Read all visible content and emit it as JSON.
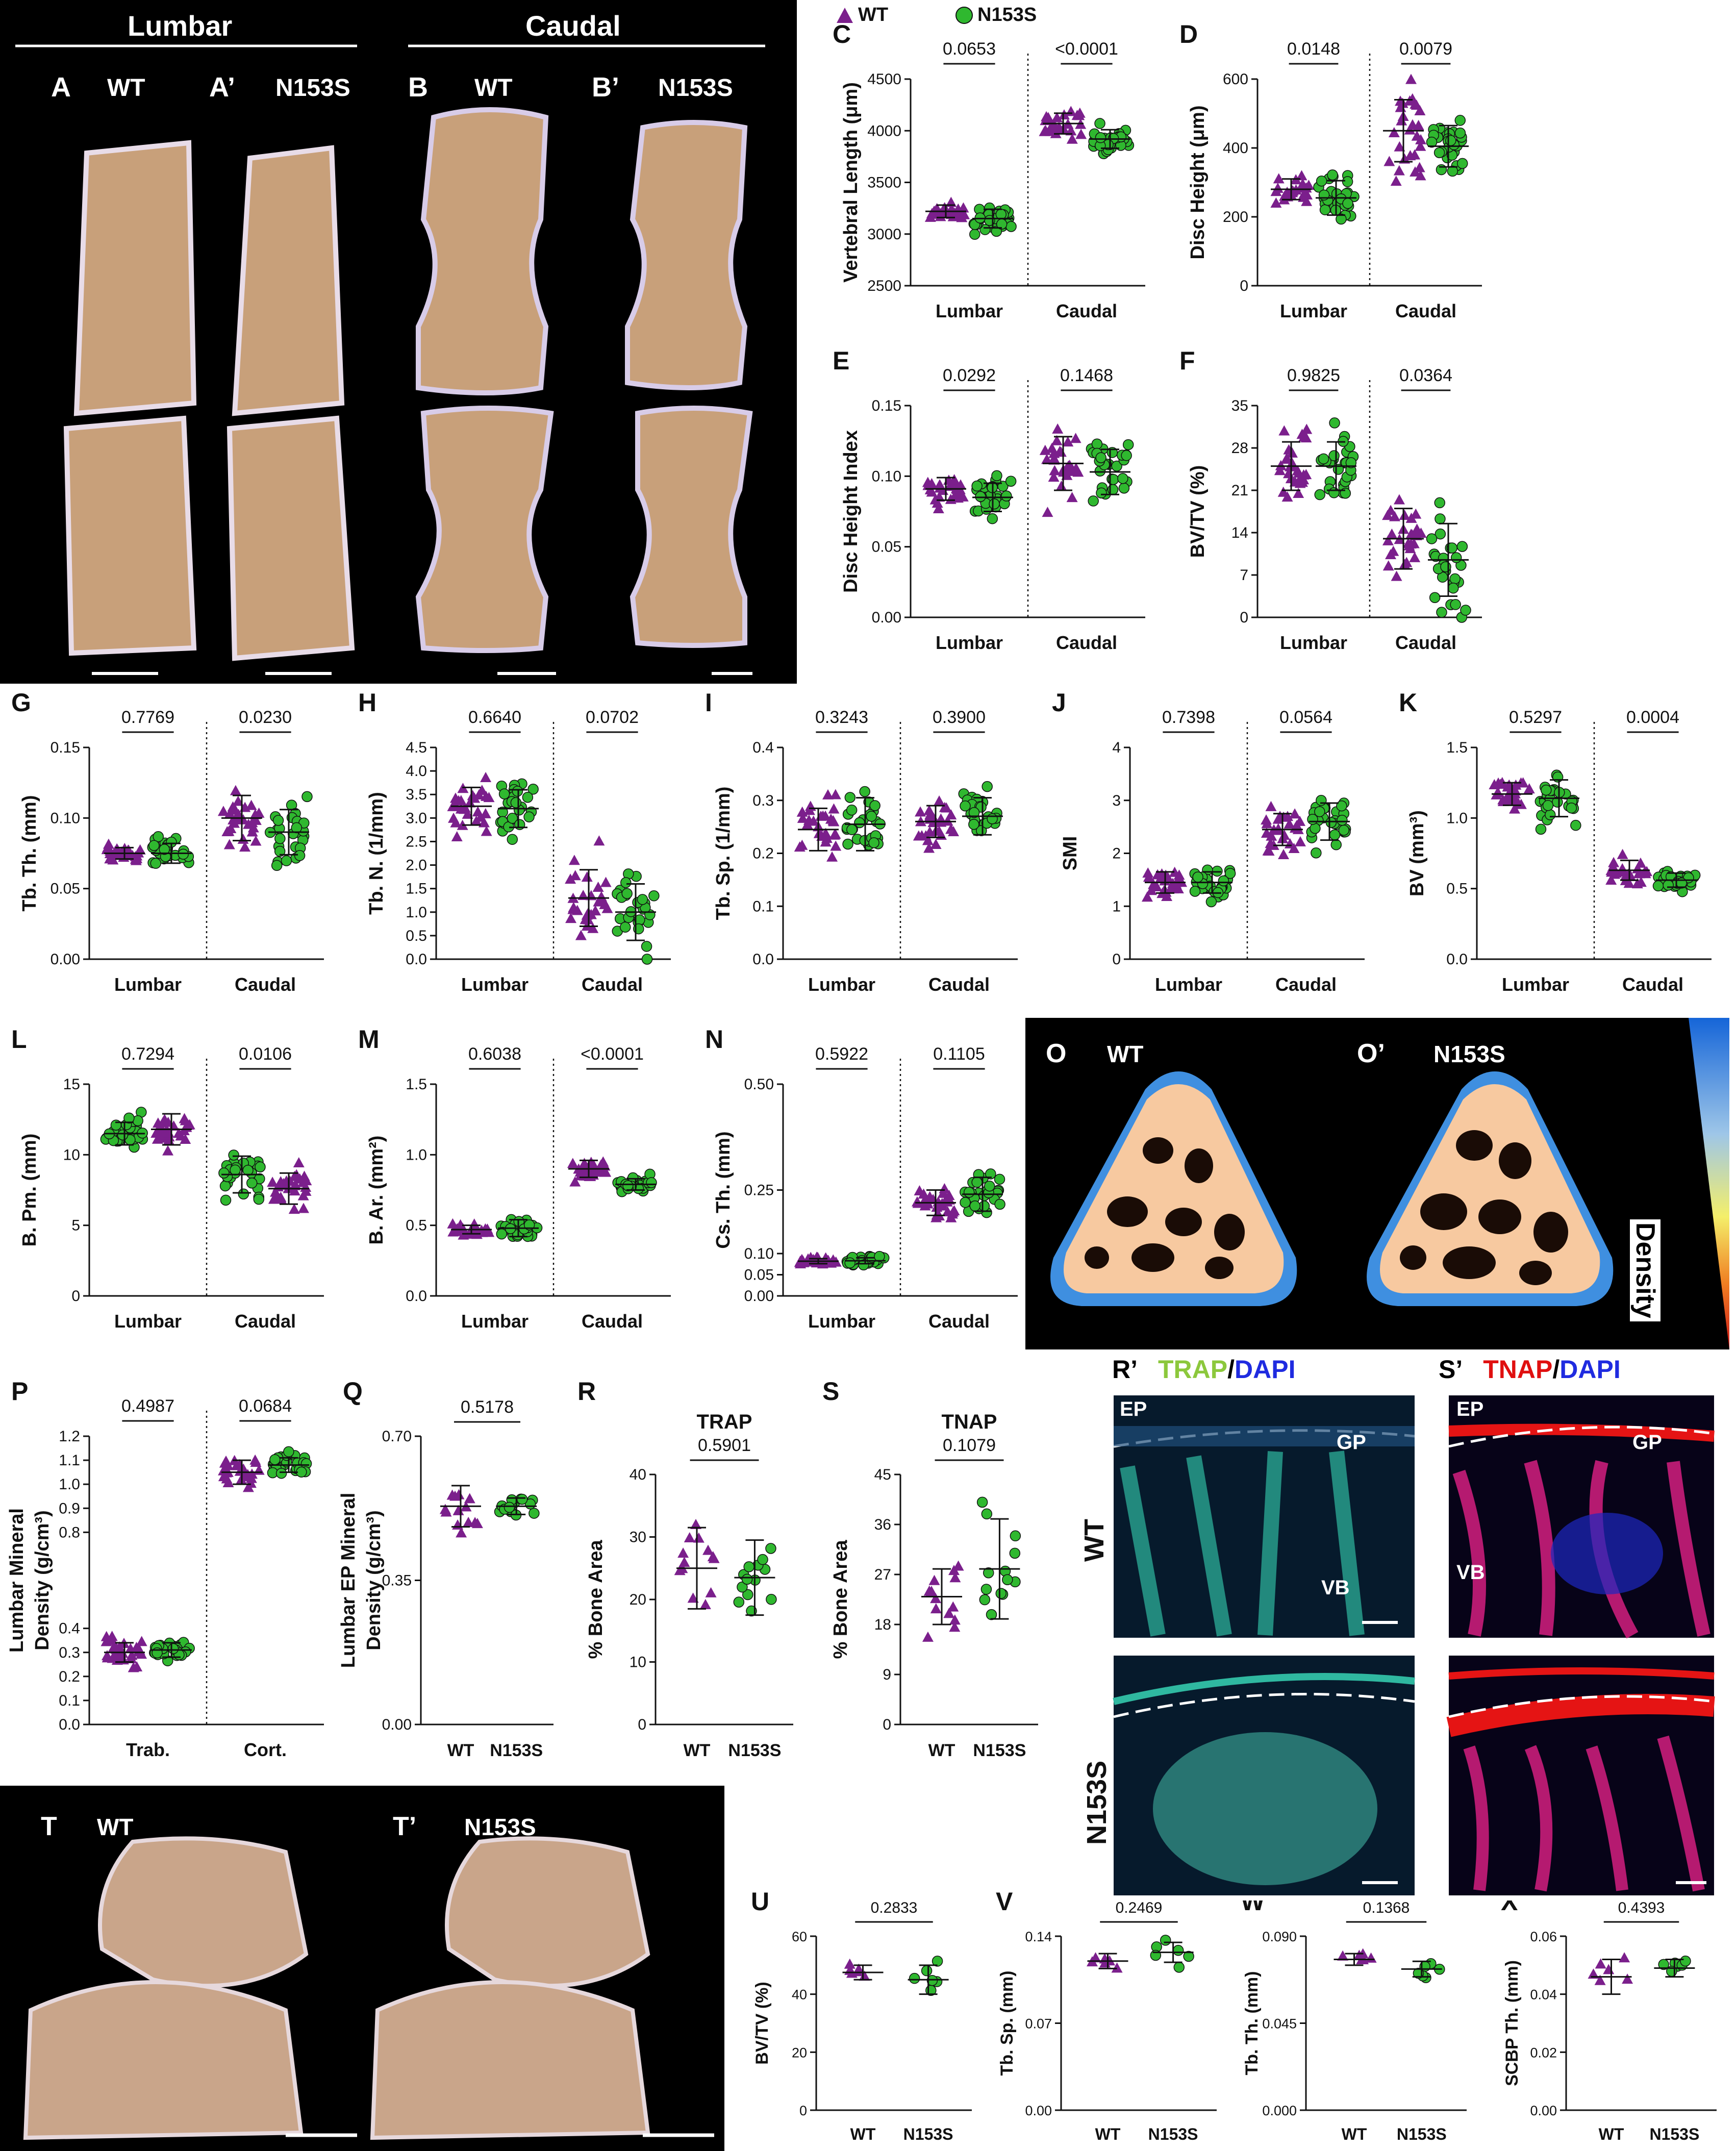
{
  "colors": {
    "wt": "#7b1f8c",
    "n153s": "#2fb82f",
    "ink": "#111111",
    "black": "#000000",
    "bone": "#c8a07a"
  },
  "legend": {
    "wt": "WT",
    "mutant": "N153S"
  },
  "micro_ct_top": {
    "header_left": "Lumbar",
    "header_right": "Caudal",
    "labels": [
      {
        "letter": "A",
        "genotype": "WT"
      },
      {
        "letter": "A’",
        "genotype": "N153S"
      },
      {
        "letter": "B",
        "genotype": "WT"
      },
      {
        "letter": "B’",
        "genotype": "N153S"
      }
    ]
  },
  "density_panel": {
    "left_letter": "O",
    "left_genotype": "WT",
    "right_letter": "O’",
    "right_genotype": "N153S",
    "scale_label": "Density"
  },
  "histo": {
    "r_title_a": "TRAP",
    "r_title_sep": "/",
    "r_title_b": "DAPI",
    "r_letter": "R’",
    "s_title_a": "TNAP",
    "s_title_sep": "/",
    "s_title_b": "DAPI",
    "s_letter": "S’",
    "row_wt": "WT",
    "row_mut": "N153S",
    "ep": "EP",
    "gp": "GP",
    "vb": "VB"
  },
  "micro_ct_bottom": {
    "left_letter": "T",
    "left_genotype": "WT",
    "right_letter": "T’",
    "right_genotype": "N153S"
  },
  "chart_data": [
    {
      "panel": "C",
      "type": "scatter",
      "ylabel": "Vertebral Length (μm)",
      "yticks": [
        "2500",
        "3000",
        "3500",
        "4000",
        "4500"
      ],
      "ylim": [
        2500,
        4500
      ],
      "groups": [
        "Lumbar",
        "Caudal"
      ],
      "p_values": [
        "0.0653",
        "<0.0001"
      ],
      "series": [
        {
          "name": "WT",
          "group_means": [
            3220,
            4070
          ],
          "group_sd": [
            60,
            100
          ]
        },
        {
          "name": "N153S",
          "group_means": [
            3150,
            3920
          ],
          "group_sd": [
            90,
            90
          ]
        }
      ]
    },
    {
      "panel": "D",
      "type": "scatter",
      "ylabel": "Disc Height (μm)",
      "yticks": [
        "0",
        "200",
        "400",
        "600"
      ],
      "ylim": [
        0,
        600
      ],
      "groups": [
        "Lumbar",
        "Caudal"
      ],
      "p_values": [
        "0.0148",
        "0.0079"
      ],
      "series": [
        {
          "name": "WT",
          "group_means": [
            280,
            450
          ],
          "group_sd": [
            30,
            90
          ]
        },
        {
          "name": "N153S",
          "group_means": [
            255,
            405
          ],
          "group_sd": [
            50,
            60
          ]
        }
      ]
    },
    {
      "panel": "E",
      "type": "scatter",
      "ylabel": "Disc Height Index",
      "yticks": [
        "0.00",
        "0.05",
        "0.10",
        "0.15"
      ],
      "ylim": [
        0,
        0.15
      ],
      "groups": [
        "Lumbar",
        "Caudal"
      ],
      "p_values": [
        "0.0292",
        "0.1468"
      ],
      "series": [
        {
          "name": "WT",
          "group_means": [
            0.091,
            0.109
          ],
          "group_sd": [
            0.008,
            0.019
          ]
        },
        {
          "name": "N153S",
          "group_means": [
            0.085,
            0.103
          ],
          "group_sd": [
            0.01,
            0.016
          ]
        }
      ]
    },
    {
      "panel": "F",
      "type": "scatter",
      "ylabel": "BV/TV (%)",
      "yticks": [
        "0",
        "7",
        "14",
        "21",
        "28",
        "35"
      ],
      "ylim": [
        0,
        35
      ],
      "groups": [
        "Lumbar",
        "Caudal"
      ],
      "p_values": [
        "0.9825",
        "0.0364"
      ],
      "series": [
        {
          "name": "WT",
          "group_means": [
            25,
            13
          ],
          "group_sd": [
            4,
            5
          ]
        },
        {
          "name": "N153S",
          "group_means": [
            25,
            9.5
          ],
          "group_sd": [
            4,
            6
          ]
        }
      ]
    },
    {
      "panel": "G",
      "type": "scatter",
      "ylabel": "Tb. Th. (mm)",
      "yticks": [
        "0.00",
        "0.05",
        "0.10",
        "0.15"
      ],
      "ylim": [
        0,
        0.15
      ],
      "groups": [
        "Lumbar",
        "Caudal"
      ],
      "p_values": [
        "0.7769",
        "0.0230"
      ],
      "series": [
        {
          "name": "WT",
          "group_means": [
            0.075,
            0.1
          ],
          "group_sd": [
            0.004,
            0.016
          ]
        },
        {
          "name": "N153S",
          "group_means": [
            0.075,
            0.09
          ],
          "group_sd": [
            0.007,
            0.016
          ]
        }
      ]
    },
    {
      "panel": "H",
      "type": "scatter",
      "ylabel": "Tb. N. (1/mm)",
      "yticks": [
        "0.0",
        "0.5",
        "1.0",
        "1.5",
        "2.0",
        "2.5",
        "3.0",
        "3.5",
        "4.0",
        "4.5"
      ],
      "ylim": [
        0,
        4.5
      ],
      "groups": [
        "Lumbar",
        "Caudal"
      ],
      "p_values": [
        "0.6640",
        "0.0702"
      ],
      "series": [
        {
          "name": "WT",
          "group_means": [
            3.25,
            1.3
          ],
          "group_sd": [
            0.4,
            0.6
          ]
        },
        {
          "name": "N153S",
          "group_means": [
            3.2,
            1.0
          ],
          "group_sd": [
            0.4,
            0.6
          ]
        }
      ]
    },
    {
      "panel": "I",
      "type": "scatter",
      "ylabel": "Tb. Sp. (1/mm)",
      "yticks": [
        "0.0",
        "0.1",
        "0.2",
        "0.3",
        "0.4"
      ],
      "ylim": [
        0,
        0.4
      ],
      "groups": [
        "Lumbar",
        "Caudal"
      ],
      "p_values": [
        "0.3243",
        "0.3900"
      ],
      "series": [
        {
          "name": "WT",
          "group_means": [
            0.245,
            0.26
          ],
          "group_sd": [
            0.04,
            0.03
          ]
        },
        {
          "name": "N153S",
          "group_means": [
            0.255,
            0.27
          ],
          "group_sd": [
            0.05,
            0.035
          ]
        }
      ]
    },
    {
      "panel": "J",
      "type": "scatter",
      "ylabel": "SMI",
      "yticks": [
        "0",
        "1",
        "2",
        "3",
        "4"
      ],
      "ylim": [
        0,
        4
      ],
      "groups": [
        "Lumbar",
        "Caudal"
      ],
      "p_values": [
        "0.7398",
        "0.0564"
      ],
      "series": [
        {
          "name": "WT",
          "group_means": [
            1.45,
            2.45
          ],
          "group_sd": [
            0.2,
            0.3
          ]
        },
        {
          "name": "N153S",
          "group_means": [
            1.45,
            2.6
          ],
          "group_sd": [
            0.2,
            0.35
          ]
        }
      ]
    },
    {
      "panel": "K",
      "type": "scatter",
      "ylabel": "BV (mm³)",
      "yticks": [
        "0.0",
        "0.5",
        "1.0",
        "1.5"
      ],
      "ylim": [
        0,
        1.5
      ],
      "groups": [
        "Lumbar",
        "Caudal"
      ],
      "p_values": [
        "0.5297",
        "0.0004"
      ],
      "series": [
        {
          "name": "WT",
          "group_means": [
            1.17,
            0.63
          ],
          "group_sd": [
            0.08,
            0.07
          ]
        },
        {
          "name": "N153S",
          "group_means": [
            1.14,
            0.56
          ],
          "group_sd": [
            0.13,
            0.05
          ]
        }
      ]
    },
    {
      "panel": "L",
      "type": "scatter",
      "ylabel": "B. Pm. (mm)",
      "yticks": [
        "0",
        "5",
        "10",
        "15"
      ],
      "ylim": [
        0,
        15
      ],
      "groups": [
        "Lumbar",
        "Caudal"
      ],
      "p_values": [
        "0.7294",
        "0.0106"
      ],
      "series": [
        {
          "name": "N153S",
          "group_means": [
            11.5,
            8.6
          ],
          "group_sd": [
            0.8,
            1.3
          ]
        },
        {
          "name": "WT",
          "group_means": [
            11.8,
            7.6
          ],
          "group_sd": [
            1.1,
            1.1
          ]
        }
      ]
    },
    {
      "panel": "M",
      "type": "scatter",
      "ylabel": "B. Ar. (mm²)",
      "yticks": [
        "0.0",
        "0.5",
        "1.0",
        "1.5"
      ],
      "ylim": [
        0,
        1.5
      ],
      "groups": [
        "Lumbar",
        "Caudal"
      ],
      "p_values": [
        "0.6038",
        "<0.0001"
      ],
      "series": [
        {
          "name": "WT",
          "group_means": [
            0.47,
            0.9
          ],
          "group_sd": [
            0.03,
            0.06
          ]
        },
        {
          "name": "N153S",
          "group_means": [
            0.48,
            0.79
          ],
          "group_sd": [
            0.06,
            0.04
          ]
        }
      ]
    },
    {
      "panel": "N",
      "type": "scatter",
      "ylabel": "Cs. Th. (mm)",
      "yticks": [
        "0.00",
        "0.05",
        "0.10",
        "0.25",
        "0.50"
      ],
      "ylim": [
        0,
        0.5
      ],
      "groups": [
        "Lumbar",
        "Caudal"
      ],
      "p_values": [
        "0.5922",
        "0.1105"
      ],
      "series": [
        {
          "name": "WT",
          "group_means": [
            0.082,
            0.22
          ],
          "group_sd": [
            0.006,
            0.03
          ]
        },
        {
          "name": "N153S",
          "group_means": [
            0.083,
            0.24
          ],
          "group_sd": [
            0.007,
            0.04
          ]
        }
      ]
    },
    {
      "panel": "P",
      "type": "scatter",
      "ylabel_line1": "Lumbar Mineral",
      "ylabel_line2": "Density (g/cm³)",
      "yticks": [
        "0.0",
        "0.1",
        "0.2",
        "0.3",
        "0.4",
        "0.8",
        "0.9",
        "1.0",
        "1.1",
        "1.2"
      ],
      "groups": [
        "Trab.",
        "Cort."
      ],
      "p_values": [
        "0.4987",
        "0.0684"
      ],
      "series": [
        {
          "name": "WT",
          "group_means": [
            0.3,
            1.05
          ],
          "group_sd": [
            0.04,
            0.05
          ]
        },
        {
          "name": "N153S",
          "group_means": [
            0.31,
            1.08
          ],
          "group_sd": [
            0.03,
            0.03
          ]
        }
      ]
    },
    {
      "panel": "Q",
      "type": "scatter",
      "ylabel_line1": "Lumbar EP Mineral",
      "ylabel_line2": "Density (g/cm³)",
      "yticks": [
        "0.00",
        "0.35",
        "0.70"
      ],
      "ylim": [
        0,
        0.7
      ],
      "groups": [
        "WT",
        "N153S"
      ],
      "p_values": [
        "0.5178"
      ],
      "series": [
        {
          "name": "WT",
          "values_mean": 0.53,
          "sd": 0.05
        },
        {
          "name": "N153S",
          "values_mean": 0.53,
          "sd": 0.02
        }
      ]
    },
    {
      "panel": "R",
      "type": "scatter",
      "title": "TRAP",
      "ylabel": "% Bone Area",
      "yticks": [
        "0",
        "10",
        "20",
        "30",
        "40"
      ],
      "ylim": [
        0,
        40
      ],
      "groups": [
        "WT",
        "N153S"
      ],
      "p_values": [
        "0.5901"
      ],
      "series": [
        {
          "name": "WT",
          "values_mean": 25,
          "sd": 6.5
        },
        {
          "name": "N153S",
          "values_mean": 23.5,
          "sd": 6
        }
      ]
    },
    {
      "panel": "S",
      "type": "scatter",
      "title": "TNAP",
      "ylabel": "% Bone Area",
      "yticks": [
        "0",
        "9",
        "18",
        "27",
        "36",
        "45"
      ],
      "ylim": [
        0,
        45
      ],
      "groups": [
        "WT",
        "N153S"
      ],
      "p_values": [
        "0.1079"
      ],
      "series": [
        {
          "name": "WT",
          "values_mean": 23,
          "sd": 5
        },
        {
          "name": "N153S",
          "values_mean": 28,
          "sd": 9
        }
      ]
    },
    {
      "panel": "U",
      "type": "scatter",
      "ylabel": "BV/TV (%)",
      "yticks": [
        "0",
        "20",
        "40",
        "60"
      ],
      "ylim": [
        0,
        60
      ],
      "groups": [
        "WT",
        "N153S"
      ],
      "p_values": [
        "0.2833"
      ],
      "series": [
        {
          "name": "WT",
          "values_mean": 47.5,
          "sd": 2.5
        },
        {
          "name": "N153S",
          "values_mean": 45,
          "sd": 5
        }
      ]
    },
    {
      "panel": "V",
      "type": "scatter",
      "ylabel": "Tb. Sp. (mm)",
      "yticks": [
        "0.00",
        "0.07",
        "0.14"
      ],
      "ylim": [
        0,
        0.14
      ],
      "groups": [
        "WT",
        "N153S"
      ],
      "p_values": [
        "0.2469"
      ],
      "series": [
        {
          "name": "WT",
          "values_mean": 0.12,
          "sd": 0.006
        },
        {
          "name": "N153S",
          "values_mean": 0.127,
          "sd": 0.008
        }
      ]
    },
    {
      "panel": "W",
      "type": "scatter",
      "ylabel": "Tb. Th. (mm)",
      "yticks": [
        "0.000",
        "0.045",
        "0.090"
      ],
      "ylim": [
        0,
        0.09
      ],
      "groups": [
        "WT",
        "N153S"
      ],
      "p_values": [
        "0.1368"
      ],
      "series": [
        {
          "name": "WT",
          "values_mean": 0.078,
          "sd": 0.003
        },
        {
          "name": "N153S",
          "values_mean": 0.073,
          "sd": 0.004
        }
      ]
    },
    {
      "panel": "X",
      "type": "scatter",
      "ylabel": "SCBP Th. (mm)",
      "yticks": [
        "0.00",
        "0.02",
        "0.04",
        "0.06"
      ],
      "ylim": [
        0,
        0.06
      ],
      "groups": [
        "WT",
        "N153S"
      ],
      "p_values": [
        "0.4393"
      ],
      "series": [
        {
          "name": "WT",
          "values_mean": 0.046,
          "sd": 0.006
        },
        {
          "name": "N153S",
          "values_mean": 0.049,
          "sd": 0.003
        }
      ]
    }
  ]
}
